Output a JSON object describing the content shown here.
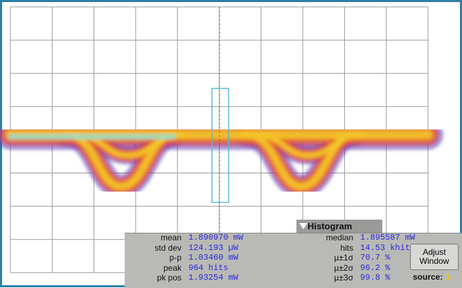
{
  "panel": {
    "title": "Histogram",
    "left": [
      {
        "label": "mean",
        "value": "1.890970 mW"
      },
      {
        "label": "std dev",
        "value": "124.193 µW"
      },
      {
        "label": "p-p",
        "value": "1.03460 mW"
      },
      {
        "label": "peak",
        "value": "964 hits"
      },
      {
        "label": "pk pos",
        "value": "1.93254 mW"
      }
    ],
    "right": [
      {
        "label": "median",
        "value": "1.895587 mW"
      },
      {
        "label": "hits",
        "value": "14.53 khits"
      },
      {
        "label": "µ±1σ",
        "value": "70.7 %"
      },
      {
        "label": "µ±2σ",
        "value": "96.2 %"
      },
      {
        "label": "µ±3σ",
        "value": "99.8 %"
      }
    ],
    "button": "Adjust Window",
    "source": {
      "label": "source:",
      "value": "1"
    }
  }
}
